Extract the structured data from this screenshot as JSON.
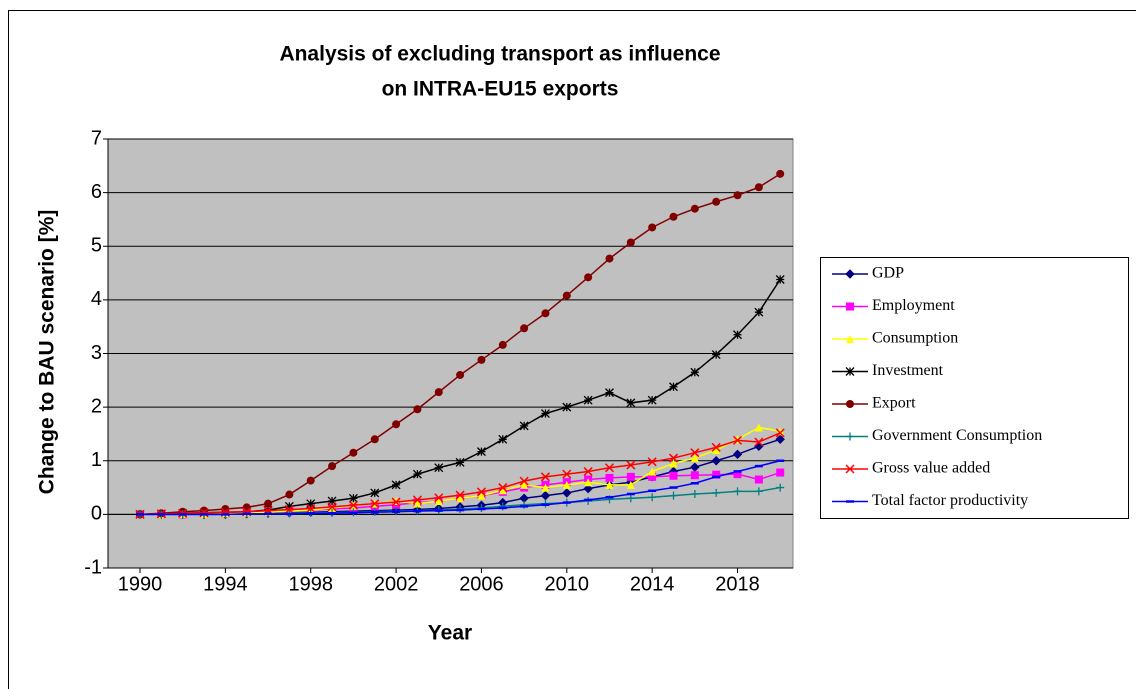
{
  "chart_data": {
    "type": "line",
    "title": [
      "Analysis of excluding transport as influence",
      "on INTRA-EU15 exports"
    ],
    "x_label": "Year",
    "y_label": "Change to BAU scenario [%]",
    "x": [
      1990,
      1991,
      1992,
      1993,
      1994,
      1995,
      1996,
      1997,
      1998,
      1999,
      2000,
      2001,
      2002,
      2003,
      2004,
      2005,
      2006,
      2007,
      2008,
      2009,
      2010,
      2011,
      2012,
      2013,
      2014,
      2015,
      2016,
      2017,
      2018,
      2019,
      2020
    ],
    "xlim": [
      1988.5,
      2020.6
    ],
    "xticks": [
      1990,
      1994,
      1998,
      2002,
      2006,
      2010,
      2014,
      2018
    ],
    "ylim": [
      -1,
      7
    ],
    "yticks": [
      -1,
      0,
      1,
      2,
      3,
      4,
      5,
      6,
      7
    ],
    "grid": true,
    "legend": "right",
    "series": [
      {
        "name": "GDP",
        "color": "#000080",
        "marker": "diamond",
        "values": [
          0,
          0,
          0,
          0,
          0,
          0.01,
          0.02,
          0.03,
          0.04,
          0.05,
          0.06,
          0.07,
          0.08,
          0.09,
          0.11,
          0.14,
          0.17,
          0.22,
          0.3,
          0.35,
          0.4,
          0.48,
          0.55,
          0.6,
          0.7,
          0.8,
          0.88,
          1.0,
          1.12,
          1.27,
          1.4
        ]
      },
      {
        "name": "Employment",
        "color": "#ff00ff",
        "marker": "square",
        "values": [
          0,
          0,
          0,
          0.01,
          0.02,
          0.03,
          0.04,
          0.06,
          0.08,
          0.1,
          0.12,
          0.15,
          0.18,
          0.22,
          0.25,
          0.3,
          0.35,
          0.42,
          0.5,
          0.55,
          0.6,
          0.65,
          0.68,
          0.7,
          0.7,
          0.72,
          0.73,
          0.74,
          0.75,
          0.65,
          0.78
        ]
      },
      {
        "name": "Consumption",
        "color": "#ffff00",
        "marker": "triangle",
        "values": [
          0,
          0,
          0.01,
          0.01,
          0.02,
          0.03,
          0.04,
          0.06,
          0.08,
          0.12,
          0.16,
          0.2,
          0.25,
          0.2,
          0.25,
          0.3,
          0.35,
          0.45,
          0.55,
          0.5,
          0.55,
          0.6,
          0.55,
          0.55,
          0.8,
          0.95,
          1.05,
          1.2,
          1.4,
          1.62,
          1.55
        ]
      },
      {
        "name": "Investment",
        "color": "#000000",
        "marker": "star",
        "values": [
          0,
          0.01,
          0.02,
          0.03,
          0.04,
          0.05,
          0.08,
          0.15,
          0.2,
          0.25,
          0.3,
          0.4,
          0.55,
          0.75,
          0.87,
          0.97,
          1.17,
          1.4,
          1.65,
          1.88,
          2.0,
          2.13,
          2.27,
          2.08,
          2.13,
          2.38,
          2.65,
          2.98,
          3.35,
          3.77,
          4.38
        ]
      },
      {
        "name": "Export",
        "color": "#800000",
        "marker": "circle",
        "values": [
          0,
          0.02,
          0.05,
          0.07,
          0.1,
          0.13,
          0.2,
          0.37,
          0.63,
          0.9,
          1.15,
          1.4,
          1.68,
          1.96,
          2.28,
          2.6,
          2.88,
          3.16,
          3.47,
          3.75,
          4.08,
          4.42,
          4.77,
          5.07,
          5.35,
          5.55,
          5.7,
          5.83,
          5.95,
          6.1,
          6.35
        ]
      },
      {
        "name": "Government Consumption",
        "color": "#008080",
        "marker": "plus",
        "values": [
          0,
          0,
          0,
          0,
          0,
          0.01,
          0.01,
          0.02,
          0.03,
          0.03,
          0.04,
          0.05,
          0.06,
          0.07,
          0.08,
          0.1,
          0.12,
          0.15,
          0.18,
          0.2,
          0.22,
          0.25,
          0.28,
          0.3,
          0.32,
          0.35,
          0.38,
          0.4,
          0.43,
          0.43,
          0.5
        ]
      },
      {
        "name": "Gross value added",
        "color": "#ff0000",
        "marker": "x",
        "values": [
          0,
          0.01,
          0.02,
          0.03,
          0.04,
          0.05,
          0.07,
          0.09,
          0.11,
          0.14,
          0.17,
          0.2,
          0.23,
          0.27,
          0.31,
          0.36,
          0.42,
          0.5,
          0.62,
          0.7,
          0.75,
          0.8,
          0.87,
          0.92,
          0.98,
          1.05,
          1.15,
          1.25,
          1.38,
          1.35,
          1.52
        ]
      },
      {
        "name": "Total factor productivity",
        "color": "#0000ff",
        "marker": "dash",
        "values": [
          0,
          0,
          0,
          0,
          0,
          0.01,
          0.01,
          0.01,
          0.02,
          0.02,
          0.03,
          0.04,
          0.05,
          0.06,
          0.07,
          0.08,
          0.1,
          0.12,
          0.15,
          0.18,
          0.22,
          0.27,
          0.32,
          0.38,
          0.44,
          0.5,
          0.58,
          0.7,
          0.8,
          0.9,
          1.0
        ]
      }
    ]
  }
}
